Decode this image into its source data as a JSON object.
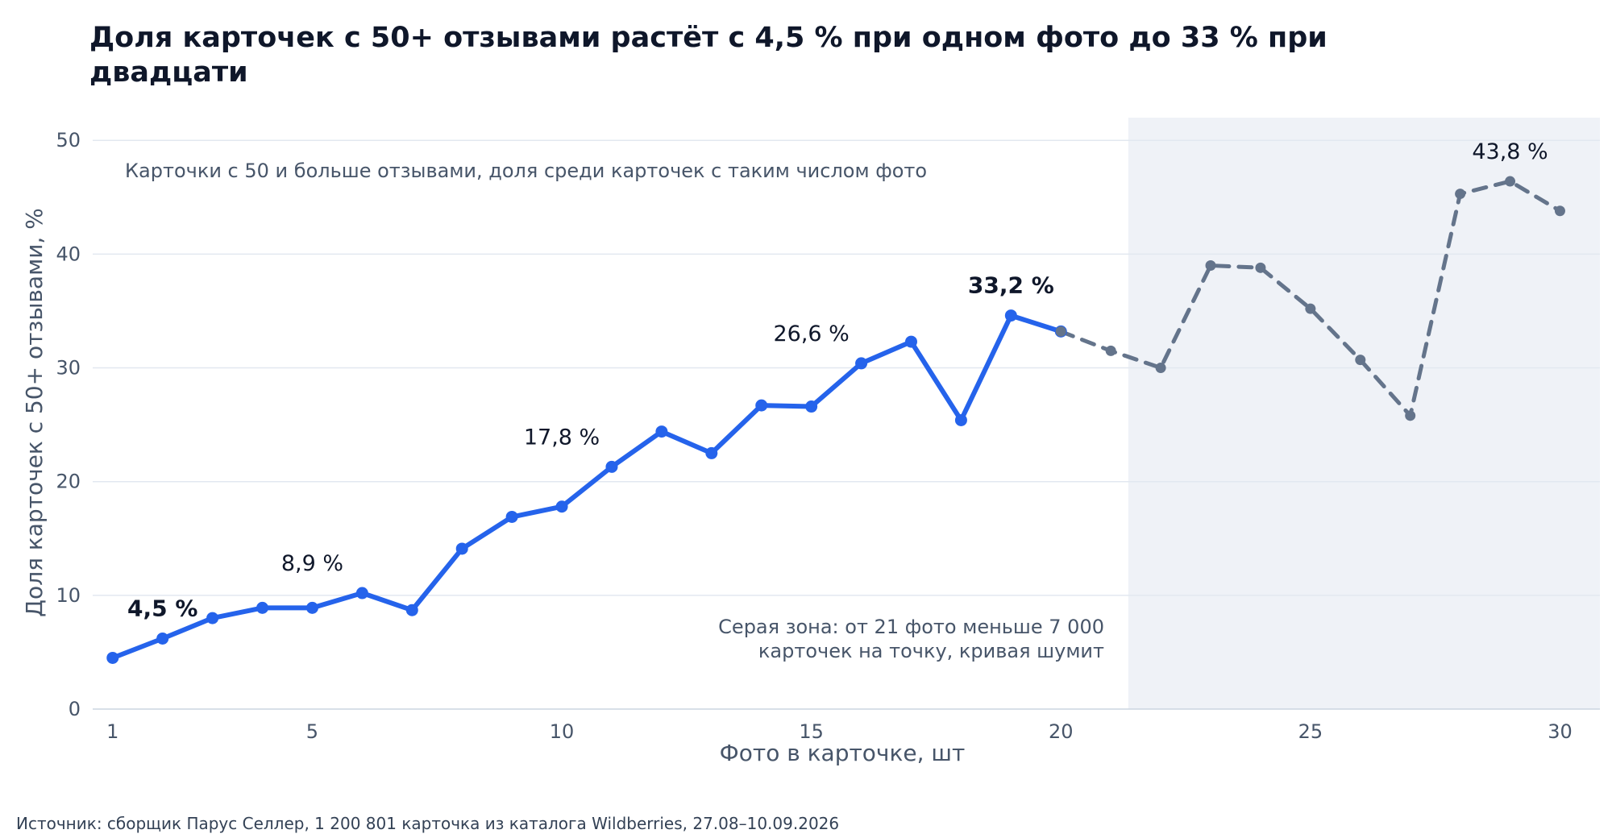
{
  "chart_data": {
    "type": "line",
    "title": "Доля карточек с 50+ отзывами растёт с 4,5 % при одном фото до 33 % при двадцати",
    "subtitle": "Карточки с 50 и больше отзывами, доля среди карточек с таким числом фото",
    "xlabel": "Фото в карточке, шт",
    "ylabel": "Доля карточек с 50+ отзывами, %",
    "xlim": [
      0.6,
      30.8
    ],
    "ylim": [
      0,
      52
    ],
    "xticks": [
      1,
      5,
      10,
      15,
      20,
      25,
      30
    ],
    "xtick_labels": [
      "1",
      "5",
      "10",
      "15",
      "20",
      "25",
      "30"
    ],
    "yticks": [
      0,
      10,
      20,
      30,
      40,
      50
    ],
    "ytick_labels": [
      "0",
      "10",
      "20",
      "30",
      "40",
      "50"
    ],
    "grid": "horizontal",
    "x": [
      1,
      2,
      3,
      4,
      5,
      6,
      7,
      8,
      9,
      10,
      11,
      12,
      13,
      14,
      15,
      16,
      17,
      18,
      19,
      20,
      21,
      22,
      23,
      24,
      25,
      26,
      27,
      28,
      29,
      30
    ],
    "series": [
      {
        "values": [
          4.5,
          6.2,
          8.0,
          8.9,
          8.9,
          10.2,
          8.7,
          14.1,
          16.9,
          17.8,
          21.3,
          24.4,
          22.5,
          26.7,
          26.6,
          30.4,
          32.3,
          25.4,
          34.6,
          33.2,
          null,
          null,
          null,
          null,
          null,
          null,
          null,
          null,
          null,
          null
        ],
        "color": "#2563eb",
        "style": "solid"
      },
      {
        "values": [
          null,
          null,
          null,
          null,
          null,
          null,
          null,
          null,
          null,
          null,
          null,
          null,
          null,
          null,
          null,
          null,
          null,
          null,
          null,
          33.2,
          31.5,
          30.0,
          39.0,
          38.8,
          35.2,
          30.7,
          25.8,
          45.3,
          46.4,
          43.8
        ],
        "color": "#64748b",
        "style": "dashed"
      }
    ],
    "shaded_region": {
      "x_from": 21.35,
      "x_to": 30.8,
      "color": "#eff2f7"
    },
    "point_labels": [
      {
        "x": 2,
        "y": 6.2,
        "text": "4,5 %",
        "bold": true
      },
      {
        "x": 5,
        "y": 10.2,
        "text": "8,9 %",
        "bold": false
      },
      {
        "x": 10,
        "y": 21.3,
        "text": "17,8 %",
        "bold": false
      },
      {
        "x": 15,
        "y": 30.4,
        "text": "26,6 %",
        "bold": false
      },
      {
        "x": 19,
        "y": 34.6,
        "text": "33,2 %",
        "bold": true
      },
      {
        "x": 29,
        "y": 46.4,
        "text": "43,8 %",
        "bold": false
      }
    ],
    "annotation_lines": [
      "Серая зона: от 21 фото меньше 7 000",
      "карточек на точку, кривая шумит"
    ],
    "source": "Источник: сборщик Парус Селлер, 1 200 801 карточка из каталога Wildberries, 27.08–10.09.2026",
    "colors": {
      "main": "#2563eb",
      "noisy": "#64748b",
      "grid": "#e2e8f0",
      "axis_text": "#475569",
      "title": "#0f172a"
    }
  }
}
